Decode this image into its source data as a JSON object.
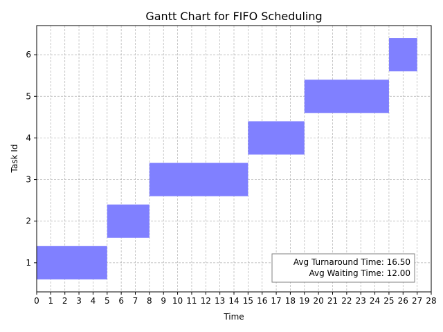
{
  "chart_data": {
    "type": "gantt",
    "title": "Gantt Chart for FIFO Scheduling",
    "xlabel": "Time",
    "ylabel": "Task Id",
    "xlim": [
      0,
      28
    ],
    "ylim": [
      0.3,
      6.7
    ],
    "x_ticks": [
      0,
      1,
      2,
      3,
      4,
      5,
      6,
      7,
      8,
      9,
      10,
      11,
      12,
      13,
      14,
      15,
      16,
      17,
      18,
      19,
      20,
      21,
      22,
      23,
      24,
      25,
      26,
      27,
      28
    ],
    "y_ticks": [
      1,
      2,
      3,
      4,
      5,
      6
    ],
    "grid": true,
    "bar_color": "#8080ff",
    "tasks": [
      {
        "id": 1,
        "start": 0,
        "end": 5
      },
      {
        "id": 2,
        "start": 5,
        "end": 8
      },
      {
        "id": 3,
        "start": 8,
        "end": 15
      },
      {
        "id": 4,
        "start": 15,
        "end": 19
      },
      {
        "id": 5,
        "start": 19,
        "end": 25
      },
      {
        "id": 6,
        "start": 25,
        "end": 27
      }
    ],
    "annotation": {
      "lines": [
        "Avg Turnaround Time: 16.50",
        "Avg Waiting Time: 12.00"
      ],
      "placement": "lower-right"
    }
  }
}
